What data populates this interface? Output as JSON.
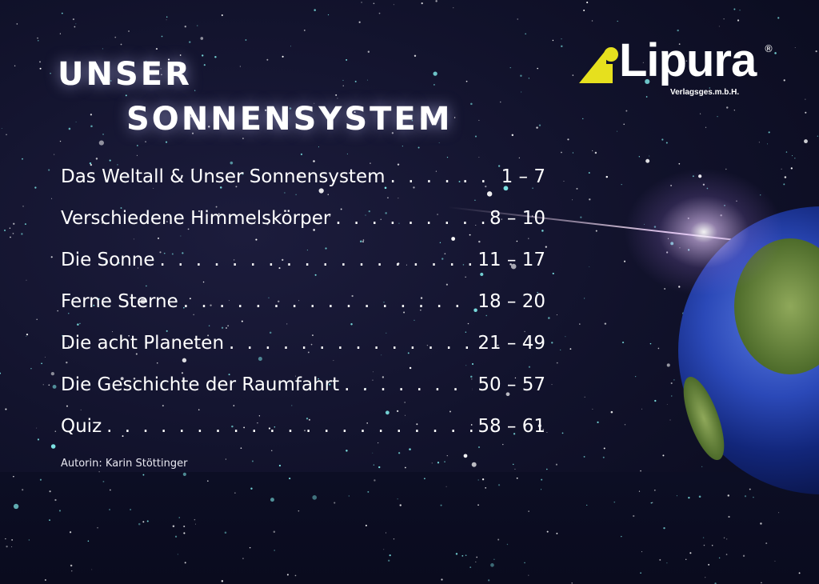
{
  "title": {
    "line1": "UNSER",
    "line2": "SONNENSYSTEM"
  },
  "logo": {
    "name": "Lipura",
    "registered": "®",
    "subtitle": "Verlagsges.m.b.H.",
    "accent_color": "#e6e01e"
  },
  "toc": [
    {
      "label": "Das Weltall & Unser Sonnensystem",
      "pages": "1 – 7"
    },
    {
      "label": "Verschiedene Himmelskörper",
      "pages": "8 – 10"
    },
    {
      "label": "Die Sonne",
      "pages": "11 – 17"
    },
    {
      "label": "Ferne Sterne",
      "pages": "18 – 20"
    },
    {
      "label": "Die acht Planeten",
      "pages": "21 – 49"
    },
    {
      "label": "Die Geschichte der Raumfahrt",
      "pages": "50 – 57"
    },
    {
      "label": "Quiz",
      "pages": "58 – 61"
    }
  ],
  "author": "Autorin: Karin Stöttinger"
}
